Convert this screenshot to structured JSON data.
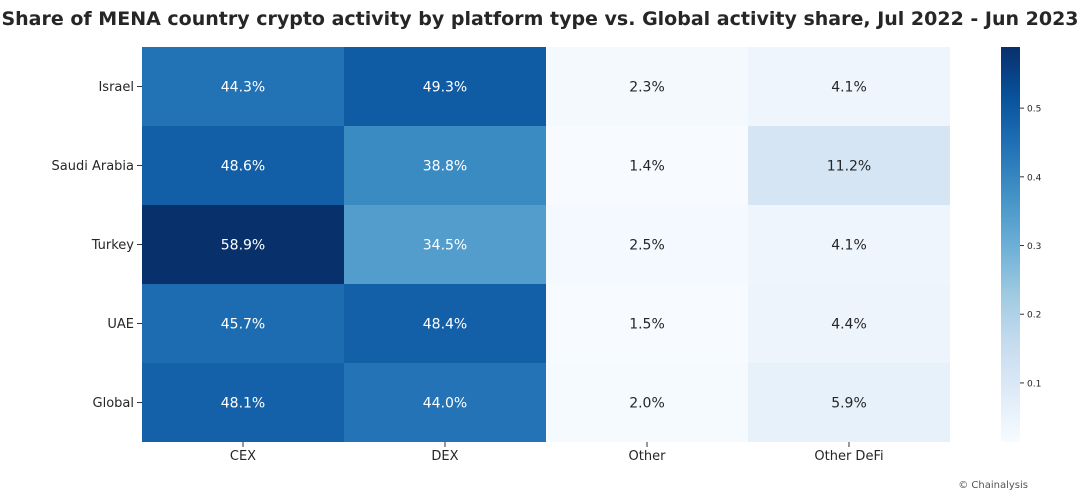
{
  "chart_data": {
    "type": "heatmap",
    "title": "Share of MENA country crypto activity by platform type vs. Global activity share, Jul 2022 - Jun 2023",
    "columns": [
      "CEX",
      "DEX",
      "Other",
      "Other DeFi"
    ],
    "rows": [
      "Israel",
      "Saudi Arabia",
      "Turkey",
      "UAE",
      "Global"
    ],
    "values": [
      [
        0.443,
        0.493,
        0.023,
        0.041
      ],
      [
        0.486,
        0.388,
        0.014,
        0.112
      ],
      [
        0.589,
        0.345,
        0.025,
        0.041
      ],
      [
        0.457,
        0.484,
        0.015,
        0.044
      ],
      [
        0.481,
        0.44,
        0.02,
        0.059
      ]
    ],
    "cell_labels": [
      [
        "44.3%",
        "49.3%",
        "2.3%",
        "4.1%"
      ],
      [
        "48.6%",
        "38.8%",
        "1.4%",
        "11.2%"
      ],
      [
        "58.9%",
        "34.5%",
        "2.5%",
        "4.1%"
      ],
      [
        "45.7%",
        "48.4%",
        "1.5%",
        "4.4%"
      ],
      [
        "48.1%",
        "44.0%",
        "2.0%",
        "5.9%"
      ]
    ],
    "colorbar": {
      "vmin": 0.014,
      "vmax": 0.589,
      "ticks": [
        "0.1",
        "0.2",
        "0.3",
        "0.4",
        "0.5"
      ],
      "colormap": "Blues"
    }
  },
  "credit": "© Chainalysis"
}
